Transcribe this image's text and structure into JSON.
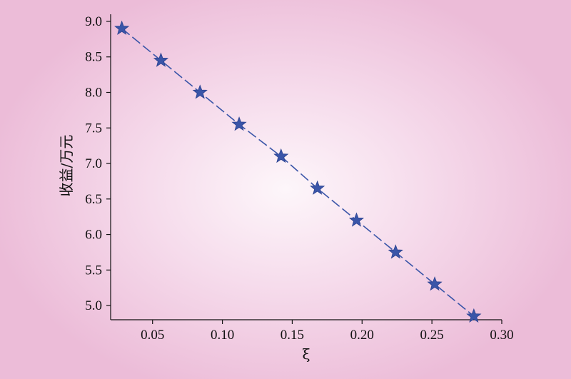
{
  "chart_data": {
    "type": "line",
    "title": "",
    "xlabel": "ξ",
    "ylabel": "收益/万元",
    "xlim": [
      0.02,
      0.3
    ],
    "ylim": [
      4.8,
      9.1
    ],
    "x_ticks": [
      0.05,
      0.1,
      0.15,
      0.2,
      0.25,
      0.3
    ],
    "x_tick_labels": [
      "0.05",
      "0.10",
      "0.15",
      "0.20",
      "0.25",
      "0.30"
    ],
    "y_ticks": [
      5.0,
      5.5,
      6.0,
      6.5,
      7.0,
      7.5,
      8.0,
      8.5,
      9.0
    ],
    "y_tick_labels": [
      "5.0",
      "5.5",
      "6.0",
      "6.5",
      "7.0",
      "7.5",
      "8.0",
      "8.5",
      "9.0"
    ],
    "marker": "star",
    "line_style": "dashed",
    "color": "#3a55a8",
    "grid": false,
    "series": [
      {
        "x": [
          0.028,
          0.056,
          0.084,
          0.112,
          0.142,
          0.168,
          0.196,
          0.224,
          0.252,
          0.28
        ],
        "y": [
          8.9,
          8.45,
          8.0,
          7.55,
          7.1,
          6.65,
          6.2,
          5.75,
          5.3,
          4.85
        ]
      }
    ]
  }
}
